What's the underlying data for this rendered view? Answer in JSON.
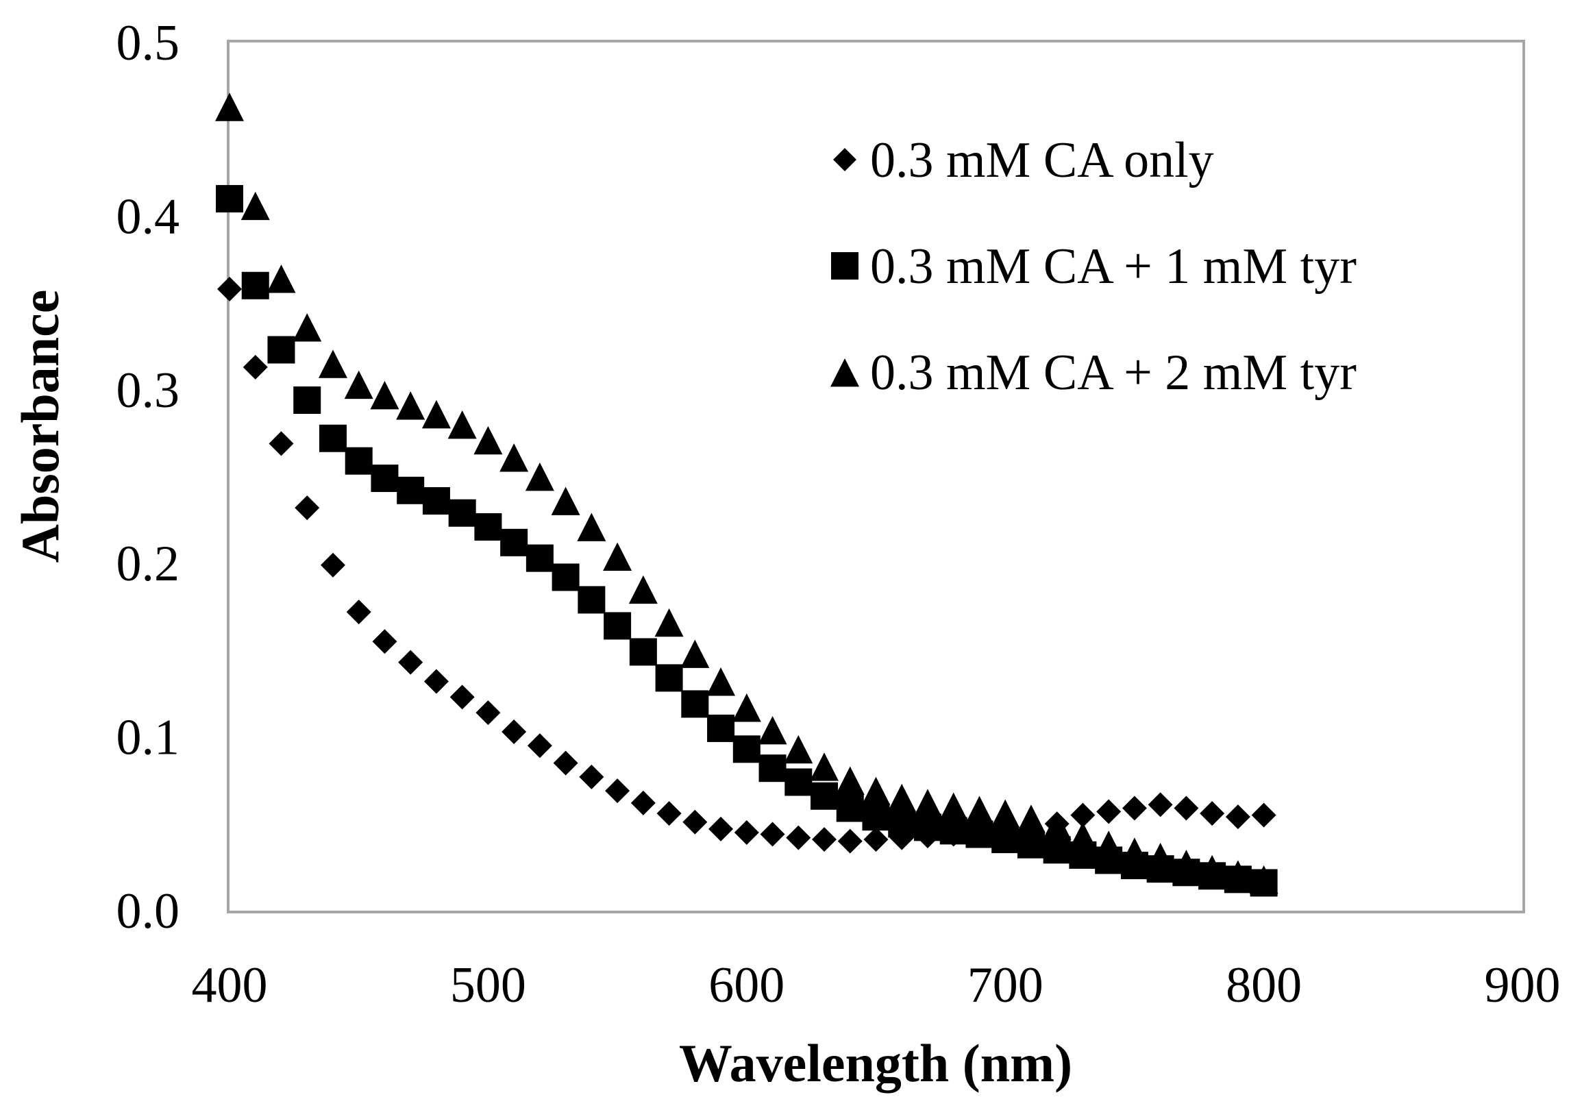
{
  "chart_data": {
    "type": "scatter",
    "title": "",
    "xlabel": "Wavelength (nm)",
    "ylabel": "Absorbance",
    "xlim": [
      400,
      900
    ],
    "ylim": [
      0.0,
      0.5
    ],
    "x_ticks": [
      "400",
      "500",
      "600",
      "700",
      "800",
      "900"
    ],
    "y_ticks": [
      "0.0",
      "0.1",
      "0.2",
      "0.3",
      "0.4",
      "0.5"
    ],
    "grid": false,
    "legend_position": "top-right",
    "x": [
      400,
      410,
      420,
      430,
      440,
      450,
      460,
      470,
      480,
      490,
      500,
      510,
      520,
      530,
      540,
      550,
      560,
      570,
      580,
      590,
      600,
      610,
      620,
      630,
      640,
      650,
      660,
      670,
      680,
      690,
      700,
      710,
      720,
      730,
      740,
      750,
      760,
      770,
      780,
      790,
      800
    ],
    "series": [
      {
        "name": "0.3 mM CA only",
        "marker": "diamond",
        "color": "#000000",
        "values": [
          0.358,
          0.313,
          0.269,
          0.232,
          0.199,
          0.172,
          0.155,
          0.143,
          0.132,
          0.123,
          0.114,
          0.103,
          0.095,
          0.085,
          0.077,
          0.069,
          0.062,
          0.056,
          0.051,
          0.047,
          0.045,
          0.044,
          0.042,
          0.041,
          0.04,
          0.041,
          0.042,
          0.043,
          0.044,
          0.045,
          0.046,
          0.047,
          0.05,
          0.055,
          0.057,
          0.059,
          0.061,
          0.059,
          0.056,
          0.054,
          0.055
        ]
      },
      {
        "name": "0.3 mM CA + 1 mM tyr",
        "marker": "square",
        "color": "#000000",
        "values": [
          0.41,
          0.36,
          0.323,
          0.294,
          0.272,
          0.259,
          0.249,
          0.242,
          0.236,
          0.229,
          0.221,
          0.212,
          0.203,
          0.192,
          0.179,
          0.164,
          0.149,
          0.134,
          0.119,
          0.105,
          0.093,
          0.082,
          0.074,
          0.066,
          0.059,
          0.054,
          0.05,
          0.048,
          0.046,
          0.044,
          0.041,
          0.038,
          0.035,
          0.032,
          0.029,
          0.026,
          0.024,
          0.022,
          0.02,
          0.018,
          0.016
        ]
      },
      {
        "name": "0.3 mM CA + 2 mM tyr",
        "marker": "triangle",
        "color": "#000000",
        "values": [
          0.462,
          0.405,
          0.363,
          0.335,
          0.314,
          0.302,
          0.296,
          0.29,
          0.285,
          0.279,
          0.27,
          0.26,
          0.249,
          0.235,
          0.22,
          0.203,
          0.184,
          0.165,
          0.147,
          0.131,
          0.116,
          0.103,
          0.092,
          0.082,
          0.074,
          0.068,
          0.064,
          0.061,
          0.059,
          0.057,
          0.055,
          0.052,
          0.048,
          0.042,
          0.037,
          0.033,
          0.03,
          0.026,
          0.023,
          0.02,
          0.017
        ]
      }
    ]
  }
}
